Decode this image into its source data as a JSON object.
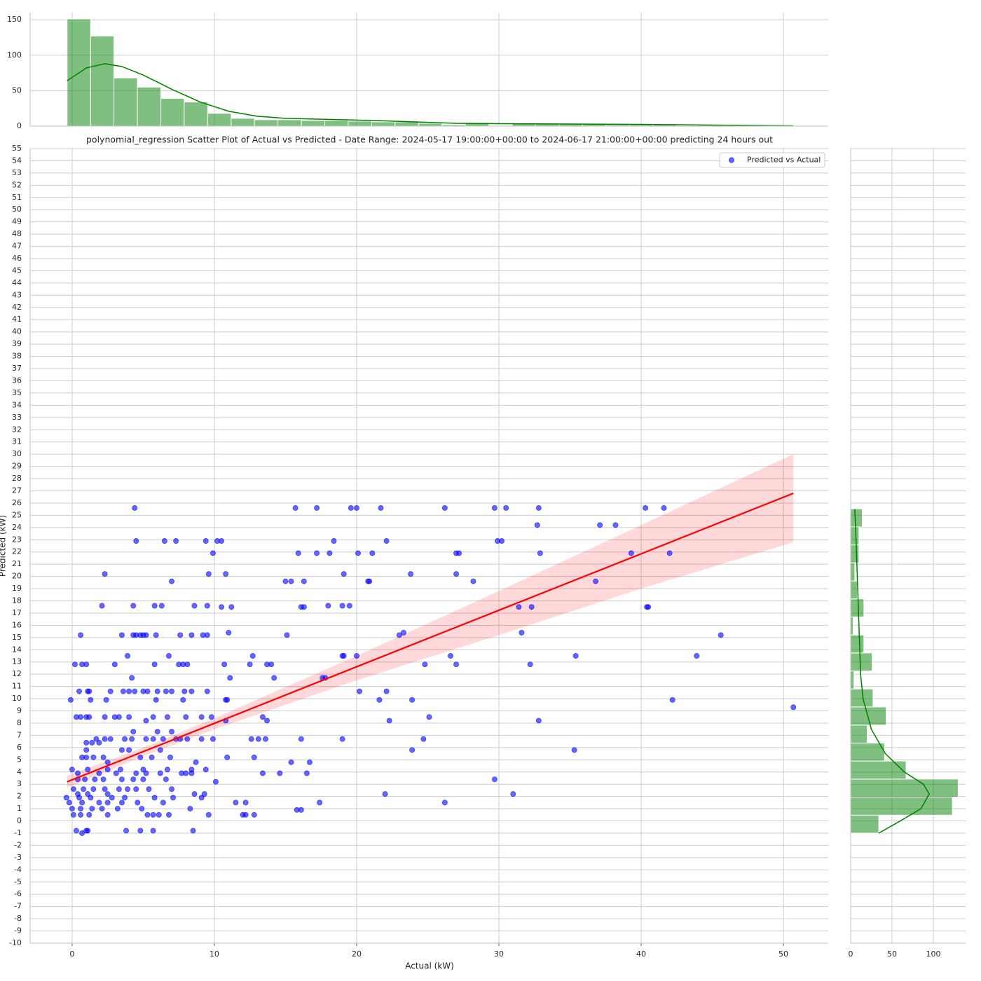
{
  "chart_data": [
    {
      "type": "scatter",
      "title": "polynomial_regression Scatter Plot of Actual vs Predicted - Date Range: 2024-05-17 19:00:00+00:00 to 2024-06-17 21:00:00+00:00 predicting 24 hours out",
      "xlabel": "Actual (kW)",
      "ylabel": "Predicted (kW)",
      "xlim": [
        -2.95,
        53.15
      ],
      "ylim": [
        -10,
        55
      ],
      "xticks": [
        0,
        10,
        20,
        30,
        40,
        50
      ],
      "yticks": [
        -10,
        -9,
        -8,
        -7,
        -6,
        -5,
        -4,
        -3,
        -2,
        -1,
        0,
        1,
        2,
        3,
        4,
        5,
        6,
        7,
        8,
        9,
        10,
        11,
        12,
        13,
        14,
        15,
        16,
        17,
        18,
        19,
        20,
        21,
        22,
        23,
        24,
        25,
        26,
        27,
        28,
        29,
        30,
        31,
        32,
        33,
        34,
        35,
        36,
        37,
        38,
        39,
        40,
        41,
        42,
        43,
        44,
        45,
        46,
        47,
        48,
        49,
        50,
        51,
        52,
        53,
        54,
        55
      ],
      "grid": true,
      "legend": "upper right",
      "series": [
        {
          "name": "Predicted vs Actual",
          "color": "#0000ff",
          "alpha": 0.6,
          "x": [
            4.4,
            15.7,
            17.2,
            19.6,
            20.0,
            21.7,
            26.2,
            29.7,
            30.5,
            32.8,
            40.3,
            41.6,
            32.7,
            37.1,
            38.2,
            4.5,
            6.5,
            7.3,
            9.4,
            10.2,
            10.5,
            18.4,
            22.1,
            29.9,
            30.2,
            9.9,
            15.9,
            17.2,
            18.1,
            20.1,
            21.1,
            27.0,
            27.2,
            32.9,
            39.3,
            42.0,
            2.3,
            9.6,
            10.8,
            19.1,
            23.8,
            27.0,
            7.0,
            15.0,
            15.4,
            16.3,
            20.8,
            20.9,
            28.2,
            36.8,
            2.1,
            4.3,
            5.8,
            6.3,
            8.6,
            9.5,
            18.0,
            19.0,
            19.5,
            10.5,
            11.2,
            16.1,
            16.3,
            31.4,
            32.3,
            40.4,
            40.5,
            0.6,
            3.5,
            4.3,
            4.5,
            4.8,
            5.0,
            5.2,
            5.9,
            7.6,
            8.4,
            9.2,
            9.5,
            15.1,
            23.0,
            45.6,
            11.0,
            23.3,
            31.6,
            3.9,
            6.8,
            12.7,
            19.0,
            19.1,
            20.0,
            26.6,
            35.4,
            43.9,
            0.2,
            0.7,
            1.0,
            3.0,
            5.8,
            7.5,
            7.8,
            8.1,
            10.7,
            12.5,
            13.7,
            14.0,
            24.8,
            27.0,
            32.2,
            4.2,
            11.1,
            14.2,
            17.6,
            17.8,
            0.5,
            1.1,
            1.2,
            2.7,
            3.6,
            4.0,
            4.4,
            5.0,
            5.3,
            6.0,
            6.6,
            7.0,
            7.9,
            8.4,
            9.5,
            20.2,
            22.1,
            -0.1,
            1.3,
            2.4,
            5.9,
            7.8,
            10.8,
            10.9,
            21.6,
            23.9,
            42.2,
            50.7,
            0.3,
            0.6,
            1.0,
            1.2,
            2.3,
            3.0,
            3.3,
            4.0,
            5.7,
            6.7,
            8.0,
            9.1,
            9.8,
            13.4,
            25.1,
            5.2,
            10.8,
            13.7,
            22.3,
            32.8,
            4.3,
            6.0,
            7.0,
            1.7,
            2.3,
            2.7,
            3.7,
            4.2,
            5.2,
            5.7,
            6.4,
            7.3,
            7.6,
            8.1,
            9.1,
            9.9,
            12.6,
            13.1,
            13.6,
            16.1,
            19.0,
            24.7,
            1.0,
            1.4,
            1.9,
            1.0,
            3.5,
            4.0,
            6.2,
            23.9,
            35.3,
            0.7,
            1.0,
            1.5,
            2.2,
            4.8,
            5.6,
            6.9,
            10.9,
            12.8,
            2.5,
            8.7,
            15.4,
            16.7,
            0.0,
            1.1,
            2.5,
            3.4,
            5.0,
            6.7,
            8.4,
            9.4,
            0.4,
            1.9,
            3.1,
            4.5,
            5.2,
            6.2,
            7.7,
            8.0,
            8.4,
            13.4,
            14.6,
            16.5,
            0.4,
            0.9,
            1.6,
            2.2,
            3.5,
            4.3,
            5.0,
            6.6,
            29.7,
            10.1,
            0.1,
            0.8,
            1.5,
            2.3,
            3.3,
            3.9,
            4.5,
            5.4,
            7.0,
            0.4,
            1.1,
            2.5,
            8.6,
            9.3,
            22.0,
            31.0,
            -0.4,
            0.5,
            1.3,
            2.8,
            3.7,
            5.8,
            7.1,
            9.1,
            -0.2,
            0.7,
            1.9,
            2.5,
            3.5,
            4.6,
            6.4,
            11.5,
            12.2,
            17.4,
            26.2,
            0.0,
            0.6,
            1.4,
            2.1,
            3.2,
            4.9,
            8.3,
            15.8,
            16.1,
            0.1,
            0.6,
            1.2,
            2.5,
            5.3,
            5.7,
            6.1,
            6.8,
            9.6,
            12.0,
            12.2,
            12.8,
            0.3,
            1.0,
            1.1,
            3.8,
            4.8,
            5.7,
            8.5,
            0.7
          ],
          "values": [
            25.6,
            25.6,
            25.6,
            25.6,
            25.6,
            25.6,
            25.6,
            25.6,
            25.6,
            25.6,
            25.6,
            25.6,
            24.2,
            24.2,
            24.2,
            22.9,
            22.9,
            22.9,
            22.9,
            22.9,
            22.9,
            22.9,
            22.9,
            22.9,
            22.9,
            21.9,
            21.9,
            21.9,
            21.9,
            21.9,
            21.9,
            21.9,
            21.9,
            21.9,
            21.9,
            21.9,
            20.2,
            20.2,
            20.2,
            20.2,
            20.2,
            20.2,
            19.6,
            19.6,
            19.6,
            19.6,
            19.6,
            19.6,
            19.6,
            19.6,
            17.6,
            17.6,
            17.6,
            17.6,
            17.6,
            17.6,
            17.6,
            17.6,
            17.6,
            17.5,
            17.5,
            17.5,
            17.5,
            17.5,
            17.5,
            17.5,
            17.5,
            15.2,
            15.2,
            15.2,
            15.2,
            15.2,
            15.2,
            15.2,
            15.2,
            15.2,
            15.2,
            15.2,
            15.2,
            15.2,
            15.2,
            15.2,
            15.4,
            15.4,
            15.4,
            13.5,
            13.5,
            13.5,
            13.5,
            13.5,
            13.5,
            13.5,
            13.5,
            13.5,
            12.8,
            12.8,
            12.8,
            12.8,
            12.8,
            12.8,
            12.8,
            12.8,
            12.8,
            12.8,
            12.8,
            12.8,
            12.8,
            12.8,
            12.8,
            11.7,
            11.7,
            11.7,
            11.7,
            11.7,
            10.6,
            10.6,
            10.6,
            10.6,
            10.6,
            10.6,
            10.6,
            10.6,
            10.6,
            10.6,
            10.6,
            10.6,
            10.6,
            10.6,
            10.6,
            10.6,
            10.6,
            9.9,
            9.9,
            9.9,
            9.9,
            9.9,
            9.9,
            9.9,
            9.9,
            9.9,
            9.9,
            9.3,
            8.5,
            8.5,
            8.5,
            8.5,
            8.5,
            8.5,
            8.5,
            8.5,
            8.5,
            8.5,
            8.5,
            8.5,
            8.5,
            8.5,
            8.5,
            8.2,
            8.2,
            8.2,
            8.2,
            8.2,
            7.3,
            7.3,
            7.3,
            6.7,
            6.7,
            6.7,
            6.7,
            6.7,
            6.7,
            6.7,
            6.7,
            6.7,
            6.7,
            6.7,
            6.7,
            6.7,
            6.7,
            6.7,
            6.7,
            6.7,
            6.7,
            6.7,
            6.4,
            6.4,
            6.4,
            5.8,
            5.8,
            5.8,
            5.8,
            5.8,
            5.8,
            5.2,
            5.2,
            5.2,
            5.2,
            5.2,
            5.2,
            5.2,
            5.2,
            5.2,
            4.8,
            4.8,
            4.8,
            4.8,
            4.2,
            4.2,
            4.2,
            4.2,
            4.2,
            4.2,
            4.2,
            4.2,
            3.9,
            3.9,
            3.9,
            3.9,
            3.9,
            3.9,
            3.9,
            3.9,
            3.9,
            3.9,
            3.9,
            3.9,
            3.4,
            3.4,
            3.4,
            3.4,
            3.4,
            3.4,
            3.4,
            3.4,
            3.4,
            3.2,
            2.6,
            2.6,
            2.6,
            2.6,
            2.6,
            2.6,
            2.6,
            2.6,
            2.6,
            2.2,
            2.2,
            2.2,
            2.2,
            2.2,
            2.2,
            2.2,
            1.9,
            1.9,
            1.9,
            1.9,
            1.9,
            1.9,
            1.9,
            1.9,
            1.5,
            1.5,
            1.5,
            1.5,
            1.5,
            1.5,
            1.5,
            1.5,
            1.5,
            1.5,
            1.5,
            1.0,
            1.0,
            1.0,
            1.0,
            1.0,
            1.0,
            1.0,
            0.9,
            0.9,
            0.5,
            0.5,
            0.5,
            0.5,
            0.5,
            0.5,
            0.5,
            0.5,
            0.5,
            0.5,
            0.5,
            0.5,
            -0.8,
            -0.8,
            -0.8,
            -0.8,
            -0.8,
            -0.8,
            -0.8,
            -1.0
          ]
        }
      ],
      "regression": {
        "color": "#ff0000",
        "band_alpha": 0.15,
        "x": [
          -0.35,
          5,
          10,
          20,
          30,
          40,
          50.7
        ],
        "values": [
          3.2,
          5.67,
          7.98,
          12.61,
          17.23,
          21.85,
          26.8
        ],
        "ci_lower": [
          2.7,
          5.3,
          7.5,
          11.5,
          15.2,
          19.0,
          22.8
        ],
        "ci_upper": [
          3.7,
          6.0,
          8.4,
          13.5,
          18.8,
          24.2,
          30.0
        ]
      }
    },
    {
      "type": "histogram",
      "orientation": "vertical",
      "color": "#008000",
      "alpha": 0.5,
      "ylim": [
        0,
        160
      ],
      "yticks": [
        0,
        50,
        100,
        150
      ],
      "bins": [
        -0.35,
        1.3,
        2.94,
        4.59,
        6.24,
        7.88,
        9.53,
        11.18,
        12.82,
        14.47,
        16.12,
        17.76,
        19.41,
        21.06,
        22.7,
        24.35,
        26.0,
        27.64,
        29.29,
        30.94,
        32.58,
        34.23,
        35.88,
        37.52,
        39.17,
        40.82,
        42.46,
        44.11,
        45.76,
        47.4,
        49.05,
        50.7
      ],
      "counts": [
        151,
        127,
        68,
        55,
        39,
        34,
        18,
        11,
        9,
        9,
        8,
        8,
        7,
        6,
        6,
        4,
        2,
        5,
        1,
        4,
        4,
        3,
        3,
        2,
        2,
        2,
        1,
        2,
        1,
        1,
        1
      ],
      "kde": {
        "x": [
          -0.35,
          1,
          2.3,
          3.5,
          5,
          7,
          9,
          11,
          13,
          15,
          18,
          21,
          24,
          27,
          30,
          35,
          40,
          45,
          50.7
        ],
        "values": [
          64,
          82,
          88,
          84,
          72,
          52,
          34,
          21,
          14,
          11,
          9.5,
          8,
          6,
          4,
          3.5,
          3,
          2.5,
          1.5,
          0.5
        ]
      }
    },
    {
      "type": "histogram",
      "orientation": "horizontal",
      "color": "#008000",
      "alpha": 0.5,
      "xlim": [
        0,
        139
      ],
      "xticks": [
        0,
        50,
        100
      ],
      "bins": [
        -1.0,
        0.47,
        1.95,
        3.42,
        4.9,
        6.37,
        7.84,
        9.32,
        10.79,
        12.27,
        13.74,
        15.21,
        16.69,
        18.16,
        19.63,
        21.11,
        22.58,
        24.05,
        25.53
      ],
      "counts": [
        34,
        123,
        130,
        67,
        41,
        20,
        43,
        27,
        4,
        26,
        16,
        3,
        16,
        8,
        5,
        10,
        10,
        14
      ],
      "kde": {
        "x": [
          -1,
          0,
          1,
          2.2,
          3,
          4,
          5.5,
          7.5,
          10,
          12,
          14,
          16,
          18,
          20,
          22,
          24,
          25.5
        ],
        "values": [
          34,
          60,
          85,
          95,
          88,
          65,
          42,
          25,
          15,
          12,
          11,
          10,
          9,
          8,
          7,
          6,
          5
        ]
      }
    }
  ]
}
